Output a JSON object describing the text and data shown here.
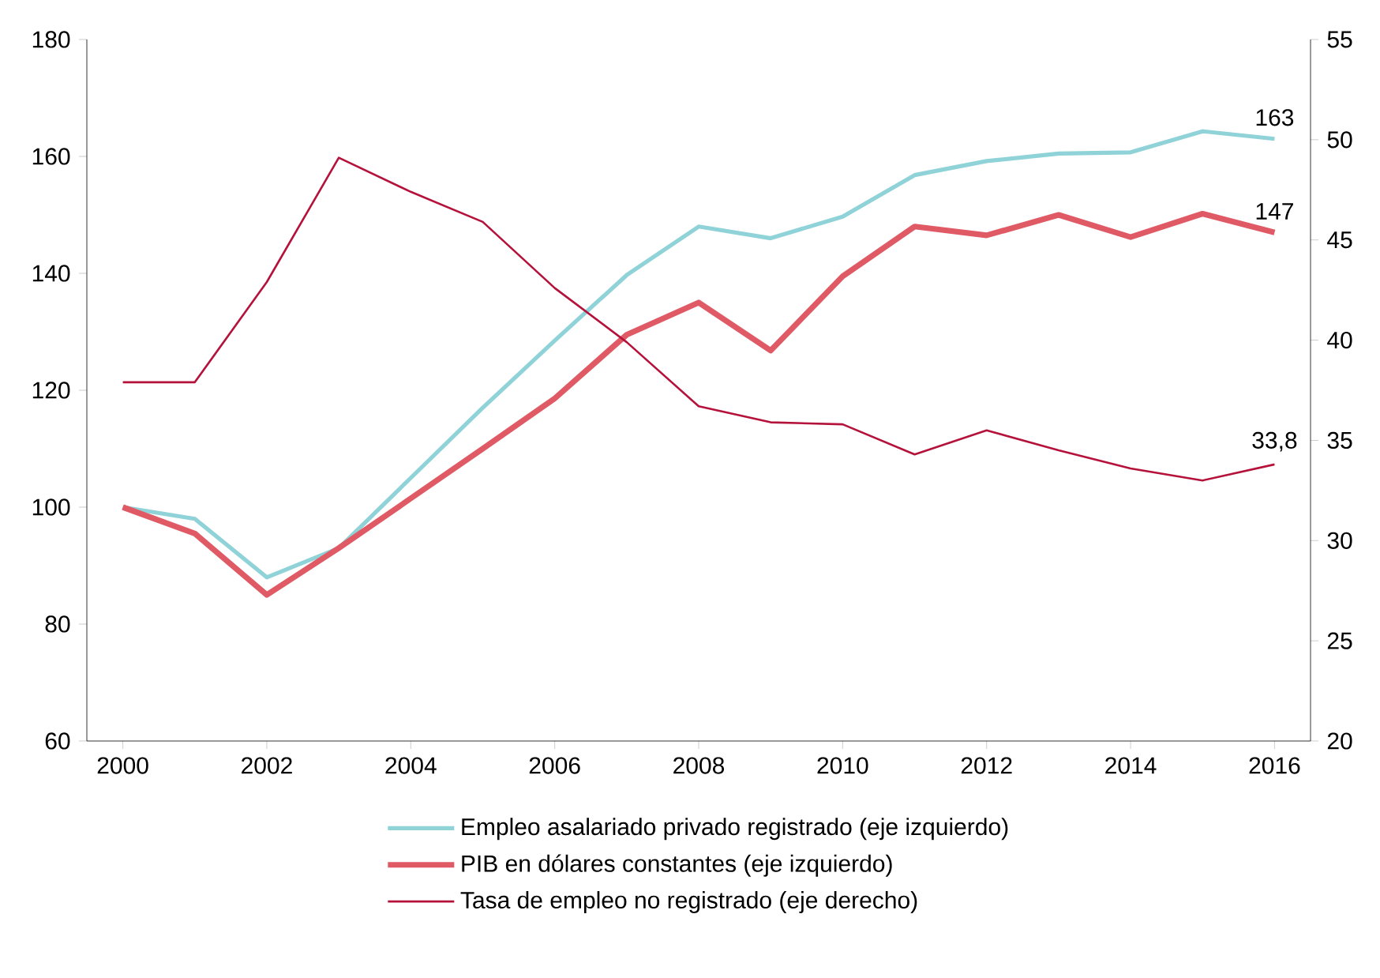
{
  "chart_data": {
    "type": "line",
    "x": [
      2000,
      2001,
      2002,
      2003,
      2004,
      2005,
      2006,
      2007,
      2008,
      2009,
      2010,
      2011,
      2012,
      2013,
      2014,
      2015,
      2016
    ],
    "series": [
      {
        "name": "Empleo asalariado privado registrado (eje izquierdo)",
        "color": "#8fd3d8",
        "values": [
          100,
          98,
          88,
          93,
          105,
          117,
          128.5,
          139.7,
          148,
          146,
          149.7,
          156.8,
          159.2,
          160.5,
          160.7,
          164.3,
          163
        ],
        "value_labels": [
          null,
          null,
          null,
          null,
          null,
          null,
          null,
          null,
          null,
          null,
          null,
          null,
          null,
          null,
          null,
          null,
          "163"
        ]
      },
      {
        "name": "PIB en dólares constantes (eje izquierdo)",
        "color": "#e05a66",
        "values": [
          100,
          95.5,
          85,
          93,
          101.5,
          110,
          118.6,
          129.5,
          135,
          126.8,
          139.5,
          148,
          146.5,
          150,
          146.2,
          150.2,
          147
        ],
        "value_labels": [
          null,
          null,
          null,
          null,
          null,
          null,
          null,
          null,
          null,
          null,
          null,
          null,
          null,
          null,
          null,
          null,
          "147"
        ]
      },
      {
        "name": "Tasa de empleo no registrado (eje derecho)",
        "color": "#b5123b",
        "axis": "y2",
        "values": [
          37.9,
          37.9,
          42.9,
          49.1,
          47.4,
          45.9,
          42.6,
          39.9,
          36.7,
          35.9,
          35.8,
          34.3,
          35.5,
          34.5,
          33.6,
          33.0,
          33.8
        ],
        "value_labels": [
          null,
          null,
          null,
          null,
          null,
          null,
          null,
          null,
          null,
          null,
          null,
          null,
          null,
          null,
          null,
          null,
          "33,8"
        ]
      }
    ],
    "xlim": [
      1999.5,
      2016.5
    ],
    "xticks": [
      2000,
      2002,
      2004,
      2006,
      2008,
      2010,
      2012,
      2014,
      2016
    ],
    "ylim": [
      60,
      180
    ],
    "yticks": [
      60,
      80,
      100,
      120,
      140,
      160,
      180
    ],
    "y2lim": [
      20,
      55
    ],
    "y2ticks": [
      20,
      25,
      30,
      35,
      40,
      45,
      50,
      55
    ],
    "grid": false,
    "legend": "bottom"
  }
}
